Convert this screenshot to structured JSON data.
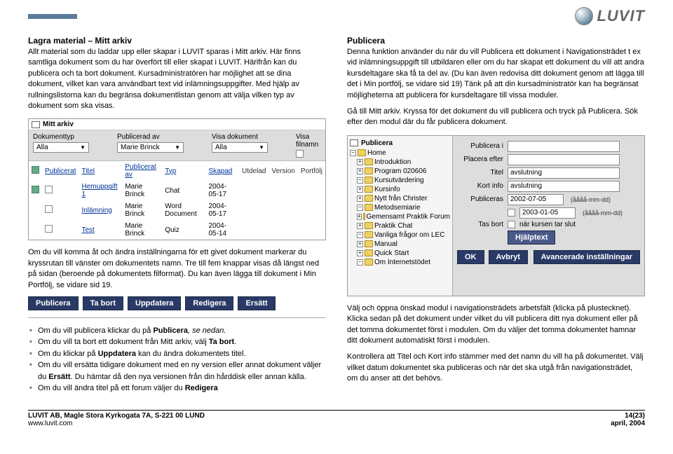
{
  "logo": {
    "text": "LUVIT"
  },
  "left": {
    "h1": "Lagra material – Mitt arkiv",
    "p1a": "Allt material som du laddar upp eller skapar i LUVIT sparas i Mitt arkiv. Här finns samtliga dokument som du har överfört till eller skapat i LUVIT. Härifrån kan du publicera och ta bort dokument. Kursadministratören har möjlighet att se dina dokument, vilket kan vara användbart text vid inlämningsuppgifter. Med hjälp av rullningslistorna kan du begränsa dokumentlistan genom att välja vilken typ av dokument som ska visas.",
    "archive": {
      "title": "Mitt arkiv",
      "filters": {
        "doctype_lbl": "Dokumenttyp",
        "doctype_val": "Alla",
        "pubby_lbl": "Publicerad av",
        "pubby_val": "Marie Brinck",
        "showdoc_lbl": "Visa dokument",
        "showdoc_val": "Alla",
        "showfile_lbl": "Visa filnamn"
      },
      "cols": {
        "pub": "Publicerat",
        "title": "Titel",
        "pubby": "Publicerat av",
        "type": "Typ",
        "created": "Skapad",
        "deliv": "Utdelad",
        "ver": "Version",
        "portf": "Portfölj"
      },
      "rows": [
        {
          "pub": true,
          "title": "Hemuppgift 1",
          "by": "Marie Brinck",
          "type": "Chat",
          "created": "2004-05-17"
        },
        {
          "pub": false,
          "title": "Inlämning",
          "by": "Marie Brinck",
          "type": "Word Document",
          "created": "2004-05-17"
        },
        {
          "pub": false,
          "title": "Test",
          "by": "Marie Brinck",
          "type": "Quiz",
          "created": "2004-05-14"
        }
      ]
    },
    "p2": "Om du vill komma åt och ändra inställningarna för ett givet dokument markerar du kryssrutan till vänster om dokumentets namn. Tre till fem knappar visas då längst ned på sidan (beroende på dokumentets filformat). Du kan även lägga till dokument i Min Portfölj, se vidare sid 19.",
    "buttons": {
      "b1": "Publicera",
      "b2": "Ta bort",
      "b3": "Uppdatera",
      "b4": "Redigera",
      "b5": "Ersätt"
    },
    "bullets": {
      "l1a": "Om du vill publicera klickar du på ",
      "l1b": "Publicera",
      "l1c": ", se nedan.",
      "l2a": "Om du vill ta bort ett dokument från Mitt arkiv, välj ",
      "l2b": "Ta bort",
      "l2c": ".",
      "l3a": "Om du klickar på ",
      "l3b": "Uppdatera",
      "l3c": " kan du ändra dokumentets titel.",
      "l4a": "Om du vill ersätta tidigare dokument med en ny version eller annat dokument väljer du ",
      "l4b": "Ersätt",
      "l4c": ". Du hämtar då den nya versionen från din hårddisk eller annan källa.",
      "l5a": "Om du vill ändra titel på ett forum väljer du ",
      "l5b": "Redigera"
    }
  },
  "right": {
    "h1": "Publicera",
    "p1": "Denna funktion använder du när du vill Publicera ett dokument i Navigationsträdet t ex vid inlämningsuppgift till utbildaren eller om du har skapat ett dokument du vill att andra kursdeltagare ska få ta del av. (Du kan även redovisa ditt dokument genom att lägga till det i Min portfölj, se vidare sid 19) Tänk på att din kursadministratör kan ha begränsat möjligheterna att publicera för kursdeltagare till vissa moduler.",
    "p2": "Gå till Mitt arkiv. Kryssa för det dokument du vill publicera och tryck på Publicera. Sök efter den modul där du får publicera dokument.",
    "dialog": {
      "title": "Publicera",
      "tree": [
        "Home",
        "Introduktion",
        "Program 020606",
        "Kursutvärdering",
        "Kursinfo",
        "Nytt från Christer",
        "Metodsemiarie",
        "Gemensamt Praktik Forum",
        "Praktik Chat",
        "Vanliga frågor om LEC",
        "Manual",
        "Quick Start",
        "Om Internetstödet"
      ],
      "form": {
        "publish_in_lbl": "Publicera i",
        "place_lbl": "Placera efter",
        "title_lbl": "Titel",
        "title_val": "avslutning",
        "short_lbl": "Kort info",
        "short_val": "avslutning",
        "pubdate_lbl": "Publiceras",
        "pubdate_val": "2002-07-05",
        "date_hint": "(åååå-mm-dd)",
        "enddate_val": "2003-01-05",
        "remove_lbl": "Tas bort",
        "remove_opt": "när kursen tar slut",
        "btn_help": "Hjälptext",
        "btn_ok": "OK",
        "btn_cancel": "Avbryt",
        "btn_adv": "Avancerade inställningar"
      }
    },
    "p3": "Välj och öppna önskad modul i navigationsträdets arbetsfält (klicka på plustecknet). Klicka sedan på det dokument under vilket du vill publicera ditt nya dokument eller på det tomma dokumentet först i modulen. Om du väljer det tomma dokumentet hamnar ditt dokument automatiskt först i modulen.",
    "p4": "Kontrollera att Titel och Kort info stämmer med det namn du vill ha på dokumentet. Välj vilket datum dokumentet ska publiceras och när det ska utgå från navigationsträdet, om du anser att det behövs."
  },
  "footer": {
    "addr": "LUVIT AB, Magle Stora Kyrkogata 7A, S-221 00  LUND",
    "url": "www.luvit.com",
    "page": "14(23)",
    "date": "april, 2004"
  }
}
